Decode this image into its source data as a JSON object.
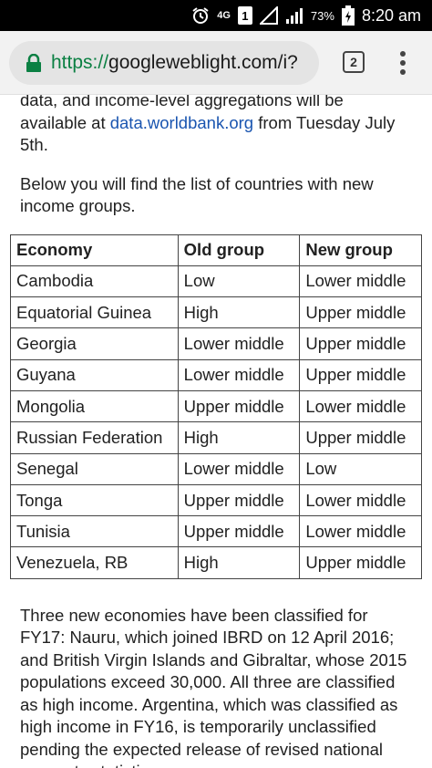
{
  "status_bar": {
    "network": "4G",
    "sim": "1",
    "battery_percent": "73%",
    "time": "8:20 am"
  },
  "browser": {
    "url_scheme": "https://",
    "url_rest": "googleweblight.com/i?",
    "tab_count": "2"
  },
  "content": {
    "intro_text": "data, and income-level aggregations will be available at ",
    "intro_link": "data.worldbank.org",
    "intro_text_end": " from Tuesday July 5th.",
    "list_intro": "Below you will find the list of countries with new income groups.",
    "table": {
      "headers": [
        "Economy",
        "Old group",
        "New group"
      ],
      "rows": [
        [
          "Cambodia",
          "Low",
          "Lower middle"
        ],
        [
          "Equatorial Guinea",
          "High",
          "Upper middle"
        ],
        [
          "Georgia",
          "Lower middle",
          "Upper middle"
        ],
        [
          "Guyana",
          "Lower middle",
          "Upper middle"
        ],
        [
          "Mongolia",
          "Upper middle",
          "Lower middle"
        ],
        [
          "Russian Federation",
          "High",
          "Upper middle"
        ],
        [
          "Senegal",
          "Lower middle",
          "Low"
        ],
        [
          "Tonga",
          "Upper middle",
          "Lower middle"
        ],
        [
          "Tunisia",
          "Upper middle",
          "Lower middle"
        ],
        [
          "Venezuela, RB",
          "High",
          "Upper middle"
        ]
      ]
    },
    "closing_text": "Three new economies have been classified for FY17: Nauru, which joined IBRD on 12 April 2016; and British Virgin Islands and Gibraltar, whose 2015 populations exceed 30,000. All three are classified as high income. Argentina, which was classified as high income in FY16, is temporarily unclassified pending the expected release of revised national accounts statistics."
  },
  "colors": {
    "link": "#1a55b0",
    "lock": "#0b8043",
    "status_bar_bg": "#000000"
  }
}
